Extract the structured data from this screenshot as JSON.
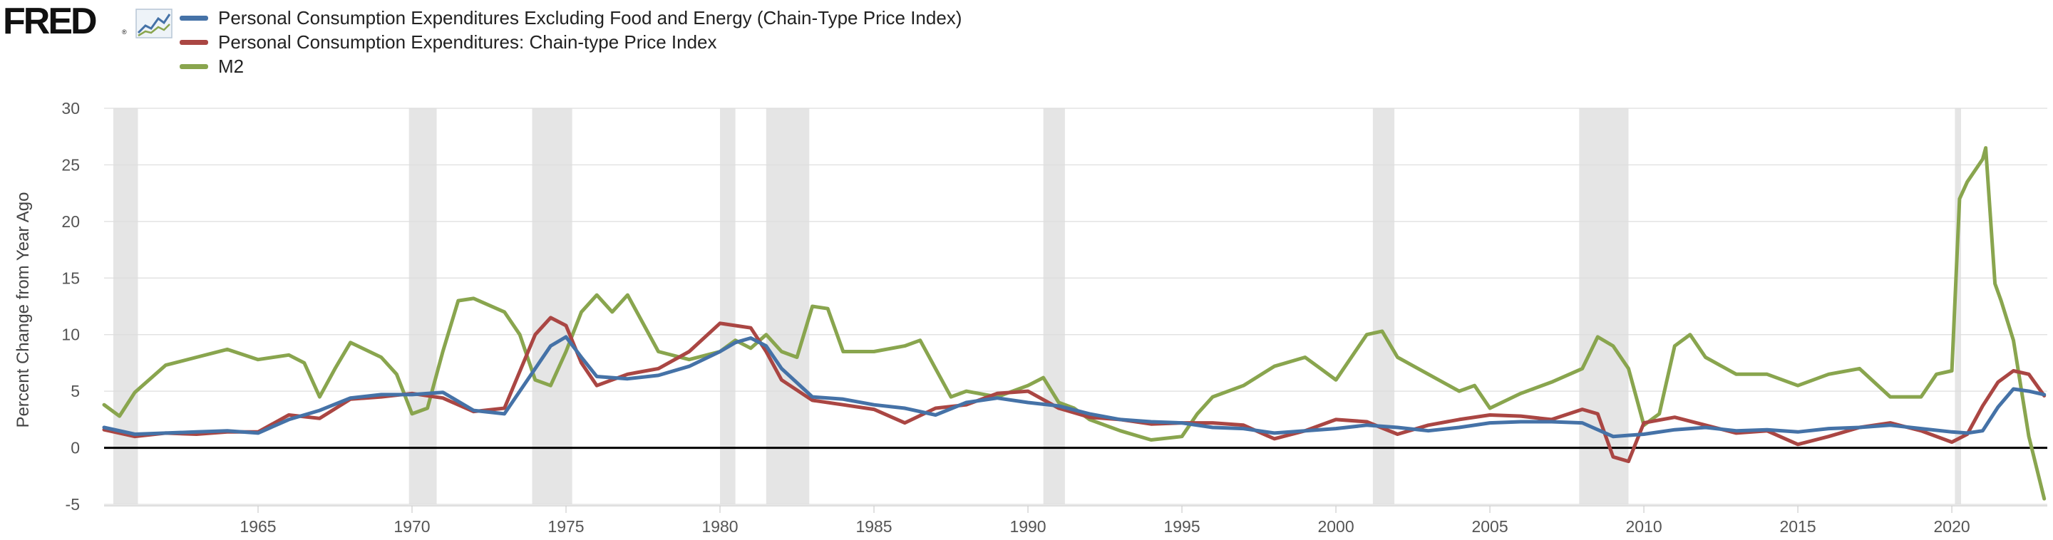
{
  "logo": {
    "text": "FRED",
    "mark": "®"
  },
  "colors": {
    "core_pce": "#4572a7",
    "pce": "#aa4643",
    "m2": "#89a54e",
    "recession": "#e5e5e5",
    "grid": "#dddddd",
    "zero_line": "#000000"
  },
  "chart_data": {
    "type": "line",
    "title": "",
    "xlabel": "",
    "ylabel": "Percent Change from Year Ago",
    "xlim": [
      1960.0,
      2023.1
    ],
    "ylim": [
      -5,
      30
    ],
    "yticks": [
      30,
      25,
      20,
      15,
      10,
      5,
      0,
      -5
    ],
    "xticks": [
      1965,
      1970,
      1975,
      1980,
      1985,
      1990,
      1995,
      2000,
      2005,
      2010,
      2015,
      2020
    ],
    "grid": "horizontal",
    "legend_position": "top-left",
    "recessions": [
      [
        1960.3,
        1961.1
      ],
      [
        1969.9,
        1970.8
      ],
      [
        1973.9,
        1975.2
      ],
      [
        1980.0,
        1980.5
      ],
      [
        1981.5,
        1982.9
      ],
      [
        1990.5,
        1991.2
      ],
      [
        2001.2,
        2001.9
      ],
      [
        2007.9,
        2009.5
      ],
      [
        2020.1,
        2020.3
      ]
    ],
    "series": [
      {
        "name": "Personal Consumption Expenditures Excluding Food and Energy (Chain-Type Price Index)",
        "color": "#4572a7",
        "x": [
          1960.0,
          1961.0,
          1962.0,
          1963.0,
          1964.0,
          1965.0,
          1966.0,
          1967.0,
          1968.0,
          1969.0,
          1970.0,
          1971.0,
          1972.0,
          1973.0,
          1974.0,
          1974.5,
          1975.0,
          1975.5,
          1976.0,
          1977.0,
          1978.0,
          1979.0,
          1980.0,
          1980.5,
          1981.0,
          1981.5,
          1982.0,
          1983.0,
          1984.0,
          1985.0,
          1986.0,
          1987.0,
          1988.0,
          1989.0,
          1990.0,
          1991.0,
          1992.0,
          1993.0,
          1994.0,
          1995.0,
          1996.0,
          1997.0,
          1998.0,
          1999.0,
          2000.0,
          2001.0,
          2002.0,
          2003.0,
          2004.0,
          2005.0,
          2006.0,
          2007.0,
          2008.0,
          2009.0,
          2010.0,
          2011.0,
          2012.0,
          2013.0,
          2014.0,
          2015.0,
          2016.0,
          2017.0,
          2018.0,
          2019.0,
          2020.0,
          2020.5,
          2021.0,
          2021.5,
          2022.0,
          2022.5,
          2023.0
        ],
        "values": [
          1.8,
          1.2,
          1.3,
          1.4,
          1.5,
          1.3,
          2.5,
          3.3,
          4.4,
          4.7,
          4.7,
          4.9,
          3.3,
          3.0,
          7.0,
          9.0,
          9.8,
          8.0,
          6.3,
          6.1,
          6.4,
          7.2,
          8.5,
          9.3,
          9.7,
          9.0,
          7.0,
          4.5,
          4.3,
          3.8,
          3.5,
          2.9,
          4.0,
          4.4,
          4.0,
          3.7,
          3.0,
          2.5,
          2.3,
          2.2,
          1.8,
          1.7,
          1.3,
          1.5,
          1.7,
          2.0,
          1.8,
          1.5,
          1.8,
          2.2,
          2.3,
          2.3,
          2.2,
          1.0,
          1.2,
          1.6,
          1.8,
          1.5,
          1.6,
          1.4,
          1.7,
          1.8,
          2.0,
          1.7,
          1.4,
          1.3,
          1.5,
          3.6,
          5.2,
          5.0,
          4.7
        ]
      },
      {
        "name": "Personal Consumption Expenditures: Chain-type Price Index",
        "color": "#aa4643",
        "x": [
          1960.0,
          1961.0,
          1962.0,
          1963.0,
          1964.0,
          1965.0,
          1966.0,
          1967.0,
          1968.0,
          1969.0,
          1970.0,
          1971.0,
          1972.0,
          1973.0,
          1974.0,
          1974.5,
          1975.0,
          1975.5,
          1976.0,
          1977.0,
          1978.0,
          1979.0,
          1980.0,
          1980.5,
          1981.0,
          1981.5,
          1982.0,
          1983.0,
          1984.0,
          1985.0,
          1986.0,
          1987.0,
          1988.0,
          1989.0,
          1990.0,
          1991.0,
          1992.0,
          1993.0,
          1994.0,
          1995.0,
          1996.0,
          1997.0,
          1998.0,
          1999.0,
          2000.0,
          2001.0,
          2002.0,
          2003.0,
          2004.0,
          2005.0,
          2006.0,
          2007.0,
          2008.0,
          2008.5,
          2009.0,
          2009.5,
          2010.0,
          2011.0,
          2012.0,
          2013.0,
          2014.0,
          2015.0,
          2016.0,
          2017.0,
          2018.0,
          2019.0,
          2020.0,
          2020.5,
          2021.0,
          2021.5,
          2022.0,
          2022.5,
          2023.0
        ],
        "values": [
          1.6,
          1.0,
          1.3,
          1.2,
          1.4,
          1.4,
          2.9,
          2.6,
          4.3,
          4.5,
          4.8,
          4.4,
          3.2,
          3.5,
          10.0,
          11.5,
          10.8,
          7.5,
          5.5,
          6.5,
          7.0,
          8.5,
          11.0,
          10.8,
          10.6,
          8.5,
          6.0,
          4.2,
          3.8,
          3.4,
          2.2,
          3.5,
          3.8,
          4.8,
          5.0,
          3.5,
          2.7,
          2.5,
          2.1,
          2.2,
          2.2,
          2.0,
          0.8,
          1.5,
          2.5,
          2.3,
          1.2,
          2.0,
          2.5,
          2.9,
          2.8,
          2.5,
          3.4,
          3.0,
          -0.8,
          -1.2,
          2.2,
          2.7,
          2.0,
          1.3,
          1.5,
          0.3,
          1.0,
          1.8,
          2.2,
          1.5,
          0.5,
          1.2,
          3.7,
          5.8,
          6.8,
          6.5,
          4.6
        ]
      },
      {
        "name": "M2",
        "color": "#89a54e",
        "x": [
          1960.0,
          1960.5,
          1961.0,
          1962.0,
          1963.0,
          1964.0,
          1965.0,
          1966.0,
          1966.5,
          1967.0,
          1967.5,
          1968.0,
          1969.0,
          1969.5,
          1970.0,
          1970.5,
          1971.0,
          1971.5,
          1972.0,
          1973.0,
          1973.5,
          1974.0,
          1974.5,
          1975.0,
          1975.5,
          1976.0,
          1976.5,
          1977.0,
          1978.0,
          1979.0,
          1980.0,
          1980.5,
          1981.0,
          1981.5,
          1982.0,
          1982.5,
          1983.0,
          1983.5,
          1984.0,
          1985.0,
          1986.0,
          1986.5,
          1987.0,
          1987.5,
          1988.0,
          1989.0,
          1990.0,
          1990.5,
          1991.0,
          1991.5,
          1992.0,
          1993.0,
          1994.0,
          1995.0,
          1995.5,
          1996.0,
          1997.0,
          1998.0,
          1999.0,
          1999.5,
          2000.0,
          2001.0,
          2001.5,
          2002.0,
          2003.0,
          2004.0,
          2004.5,
          2005.0,
          2006.0,
          2007.0,
          2008.0,
          2008.5,
          2009.0,
          2009.5,
          2010.0,
          2010.5,
          2011.0,
          2011.5,
          2012.0,
          2013.0,
          2014.0,
          2015.0,
          2016.0,
          2017.0,
          2018.0,
          2019.0,
          2019.5,
          2020.0,
          2020.25,
          2020.5,
          2021.0,
          2021.1,
          2021.4,
          2021.6,
          2022.0,
          2022.5,
          2023.0
        ],
        "values": [
          3.8,
          2.8,
          4.9,
          7.3,
          8.0,
          8.7,
          7.8,
          8.2,
          7.5,
          4.5,
          7.0,
          9.3,
          8.0,
          6.5,
          3.0,
          3.5,
          8.5,
          13.0,
          13.2,
          12.0,
          10.0,
          6.0,
          5.5,
          8.5,
          12.0,
          13.5,
          12.0,
          13.5,
          8.5,
          7.8,
          8.5,
          9.5,
          8.8,
          10.0,
          8.5,
          8.0,
          12.5,
          12.3,
          8.5,
          8.5,
          9.0,
          9.5,
          7.0,
          4.5,
          5.0,
          4.5,
          5.5,
          6.2,
          4.0,
          3.5,
          2.5,
          1.5,
          0.7,
          1.0,
          3.0,
          4.5,
          5.5,
          7.2,
          8.0,
          7.0,
          6.0,
          10.0,
          10.3,
          8.0,
          6.5,
          5.0,
          5.5,
          3.5,
          4.8,
          5.8,
          7.0,
          9.8,
          9.0,
          7.0,
          2.0,
          3.0,
          9.0,
          10.0,
          8.0,
          6.5,
          6.5,
          5.5,
          6.5,
          7.0,
          4.5,
          4.5,
          6.5,
          6.8,
          22.0,
          23.5,
          25.5,
          26.5,
          14.5,
          13.0,
          9.5,
          1.0,
          -4.5
        ]
      }
    ]
  }
}
